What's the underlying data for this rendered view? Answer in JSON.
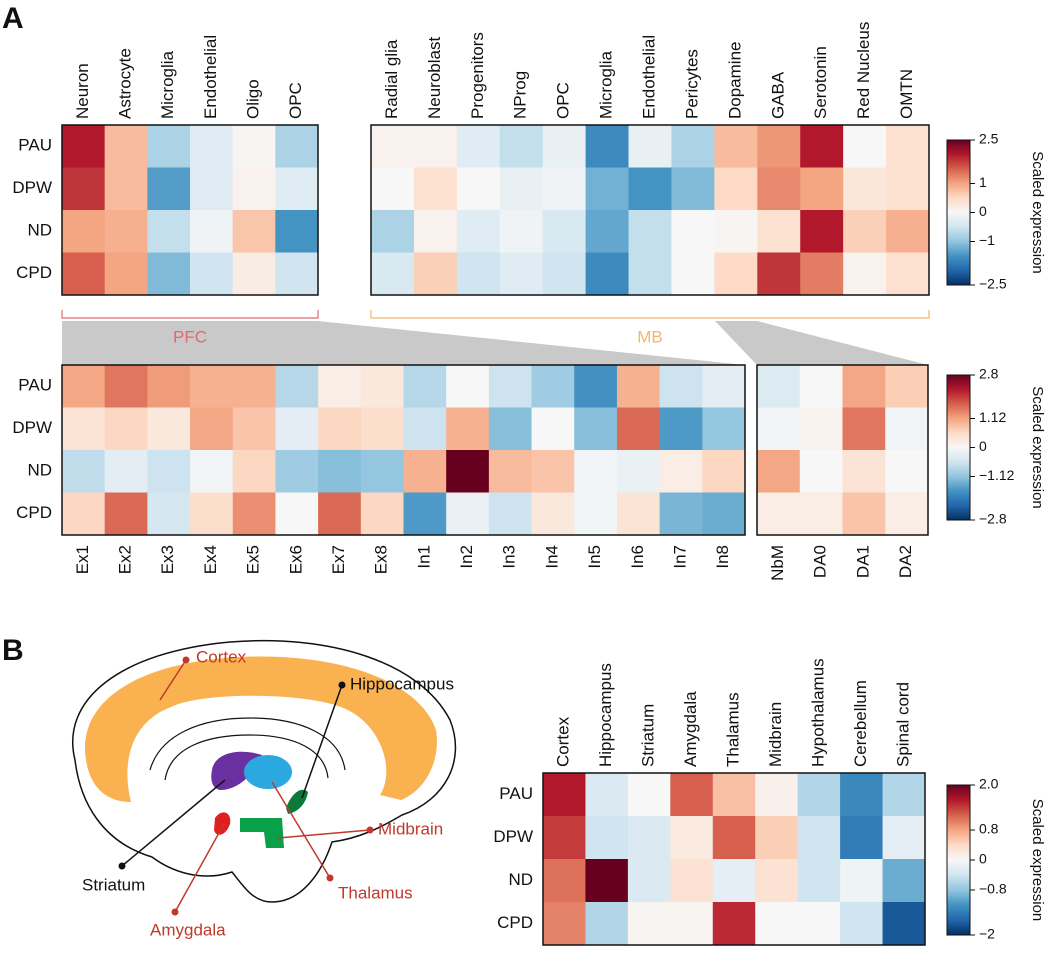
{
  "panels": [
    "A",
    "B"
  ],
  "diagram": {
    "labels": [
      "Cortex",
      "Hippocampus",
      "Striatum",
      "Amygdala",
      "Thalamus",
      "Midbrain"
    ]
  },
  "chart_data": [
    {
      "type": "heatmap",
      "group": "PFC",
      "group_color": "#e36a6a",
      "categories": [
        "Neuron",
        "Astrocyte",
        "Microglia",
        "Endothelial",
        "Oligo",
        "OPC"
      ],
      "rows": [
        "PAU",
        "DPW",
        "ND",
        "CPD"
      ],
      "values": [
        [
          2.0,
          0.8,
          -0.8,
          -0.3,
          0.05,
          -0.8
        ],
        [
          1.8,
          0.8,
          -1.4,
          -0.3,
          0.1,
          -0.3
        ],
        [
          1.0,
          0.9,
          -0.6,
          -0.1,
          0.7,
          -1.5
        ],
        [
          1.5,
          1.0,
          -1.1,
          -0.5,
          0.2,
          -0.5
        ]
      ],
      "zlim": [
        -2.5,
        2.5
      ]
    },
    {
      "type": "heatmap",
      "group": "MB",
      "group_color": "#f3b66a",
      "categories": [
        "Radial glia",
        "Neuroblast",
        "Progenitors",
        "NProg",
        "OPC",
        "Microglia",
        "Endothelial",
        "Pericytes",
        "Dopamine",
        "GABA",
        "Serotonin",
        "Red Nucleus",
        "OMTN"
      ],
      "values": [
        [
          0.1,
          0.1,
          -0.3,
          -0.6,
          -0.2,
          -1.6,
          -0.2,
          -0.8,
          0.8,
          1.1,
          2.0,
          0.0,
          0.4
        ],
        [
          0.0,
          0.4,
          0.0,
          -0.2,
          -0.1,
          -1.2,
          -1.5,
          -1.1,
          0.5,
          1.2,
          1.0,
          0.3,
          0.4
        ],
        [
          -0.8,
          0.1,
          -0.3,
          -0.1,
          -0.4,
          -1.3,
          -0.6,
          0.0,
          0.05,
          0.4,
          2.0,
          0.6,
          0.9
        ],
        [
          -0.4,
          0.6,
          -0.5,
          -0.3,
          -0.5,
          -1.6,
          -0.6,
          0.0,
          0.5,
          1.8,
          1.3,
          0.1,
          0.4
        ]
      ],
      "zlim": [
        -2.5,
        2.5
      ],
      "zticks": [
        2.5,
        1,
        0,
        {
          "value": -1,
          "label": "−1"
        },
        {
          "value": -2.5,
          "label": "−2.5"
        }
      ],
      "colorbar_label": "Scaled expression"
    },
    {
      "type": "heatmap",
      "categories": [
        "Ex1",
        "Ex2",
        "Ex3",
        "Ex4",
        "Ex5",
        "Ex6",
        "Ex7",
        "Ex8",
        "In1",
        "In2",
        "In3",
        "In4",
        "In5",
        "In6",
        "In7",
        "In8"
      ],
      "rows": [
        "PAU",
        "DPW",
        "ND",
        "CPD"
      ],
      "values": [
        [
          1.1,
          1.5,
          1.2,
          1.0,
          1.0,
          -0.8,
          0.2,
          0.3,
          -0.8,
          0.0,
          -0.6,
          -1.0,
          -1.7,
          1.0,
          -0.6,
          -0.3
        ],
        [
          0.4,
          0.6,
          0.3,
          1.1,
          0.8,
          -0.3,
          0.6,
          0.5,
          -0.6,
          1.0,
          -1.2,
          0.0,
          -1.2,
          1.6,
          -1.6,
          -1.1
        ],
        [
          -0.7,
          -0.3,
          -0.6,
          -0.1,
          0.6,
          -1.0,
          -1.2,
          -1.1,
          1.0,
          2.8,
          0.9,
          0.8,
          -0.1,
          -0.2,
          0.2,
          0.6
        ],
        [
          0.6,
          1.6,
          -0.5,
          0.5,
          1.3,
          0.0,
          1.6,
          0.6,
          -1.6,
          -0.2,
          -0.6,
          0.3,
          -0.1,
          0.4,
          -1.3,
          -1.4
        ]
      ],
      "zlim": [
        -2.8,
        2.8
      ]
    },
    {
      "type": "heatmap",
      "categories": [
        "NbM",
        "DA0",
        "DA1",
        "DA2"
      ],
      "values": [
        [
          -0.4,
          0.0,
          1.1,
          0.7
        ],
        [
          -0.1,
          0.1,
          1.5,
          -0.1
        ],
        [
          1.1,
          0.0,
          0.4,
          0.0
        ],
        [
          0.2,
          0.2,
          0.8,
          0.2
        ]
      ],
      "zlim": [
        -2.8,
        2.8
      ],
      "zticks": [
        2.8,
        1.12,
        0,
        {
          "value": -1.12,
          "label": "−1.12"
        },
        {
          "value": -2.8,
          "label": "−2.8"
        }
      ],
      "colorbar_label": "Scaled expression"
    },
    {
      "type": "heatmap",
      "categories": [
        "Cortex",
        "Hippocampus",
        "Striatum",
        "Amygdala",
        "Thalamus",
        "Midbrain",
        "Hypothalamus",
        "Cerebellum",
        "Spinal cord"
      ],
      "rows": [
        "PAU",
        "DPW",
        "ND",
        "CPD"
      ],
      "values": [
        [
          1.6,
          -0.3,
          0.0,
          1.2,
          0.6,
          0.1,
          -0.6,
          -1.3,
          -0.6
        ],
        [
          1.4,
          -0.4,
          -0.3,
          0.2,
          1.2,
          0.5,
          -0.4,
          -1.4,
          -0.2
        ],
        [
          1.1,
          2.0,
          -0.3,
          0.3,
          -0.2,
          0.3,
          -0.4,
          -0.1,
          -1.0
        ],
        [
          1.0,
          -0.6,
          0.05,
          0.05,
          1.5,
          0.0,
          0.0,
          -0.4,
          -1.7
        ]
      ],
      "zlim": [
        -2,
        2
      ],
      "zticks": [
        {
          "value": 2,
          "label": "2.0"
        },
        0.8,
        0,
        {
          "value": -0.8,
          "label": "−0.8"
        },
        {
          "value": -2,
          "label": "−2"
        }
      ],
      "colorbar_label": "Scaled expression"
    }
  ]
}
